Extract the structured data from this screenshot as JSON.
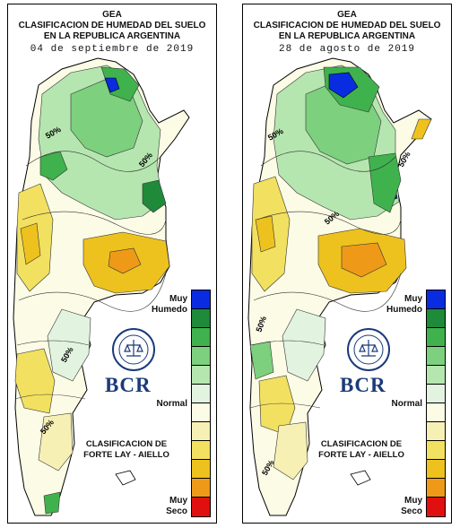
{
  "panels": [
    {
      "id": "left",
      "header": {
        "line1": "GEA",
        "line2": "CLASIFICACION DE HUMEDAD DEL SUELO",
        "line3": "EN LA REPUBLICA ARGENTINA",
        "date": "04 de septiembre de 2019"
      },
      "contour_labels": [
        "50%",
        "50%",
        "50%",
        "50%"
      ]
    },
    {
      "id": "right",
      "header": {
        "line1": "GEA",
        "line2": "CLASIFICACION DE HUMEDAD DEL SUELO",
        "line3": "EN LA REPUBLICA ARGENTINA",
        "date": "28 de agosto de 2019"
      },
      "contour_labels": [
        "50%",
        "50%",
        "50%",
        "50%",
        "50%"
      ]
    }
  ],
  "legend": {
    "top_label_1": "Muy",
    "top_label_2": "Humedo",
    "middle_label": "Normal",
    "bottom_label_1": "Muy",
    "bottom_label_2": "Seco",
    "classification_1": "CLASIFICACION DE",
    "classification_2": "FORTE LAY - AIELLO",
    "colors": [
      "#0a2ce0",
      "#1e8a3a",
      "#3fb24d",
      "#7dd07e",
      "#b6e6b0",
      "#e2f4df",
      "#fbfbe6",
      "#f7f0b4",
      "#f2e060",
      "#eec21e",
      "#ee9a18",
      "#e86a10",
      "#e01010"
    ]
  },
  "logo": {
    "text": "BCR",
    "seal_text": "BOLSA DE COMERCIO DE ROSARIO"
  }
}
